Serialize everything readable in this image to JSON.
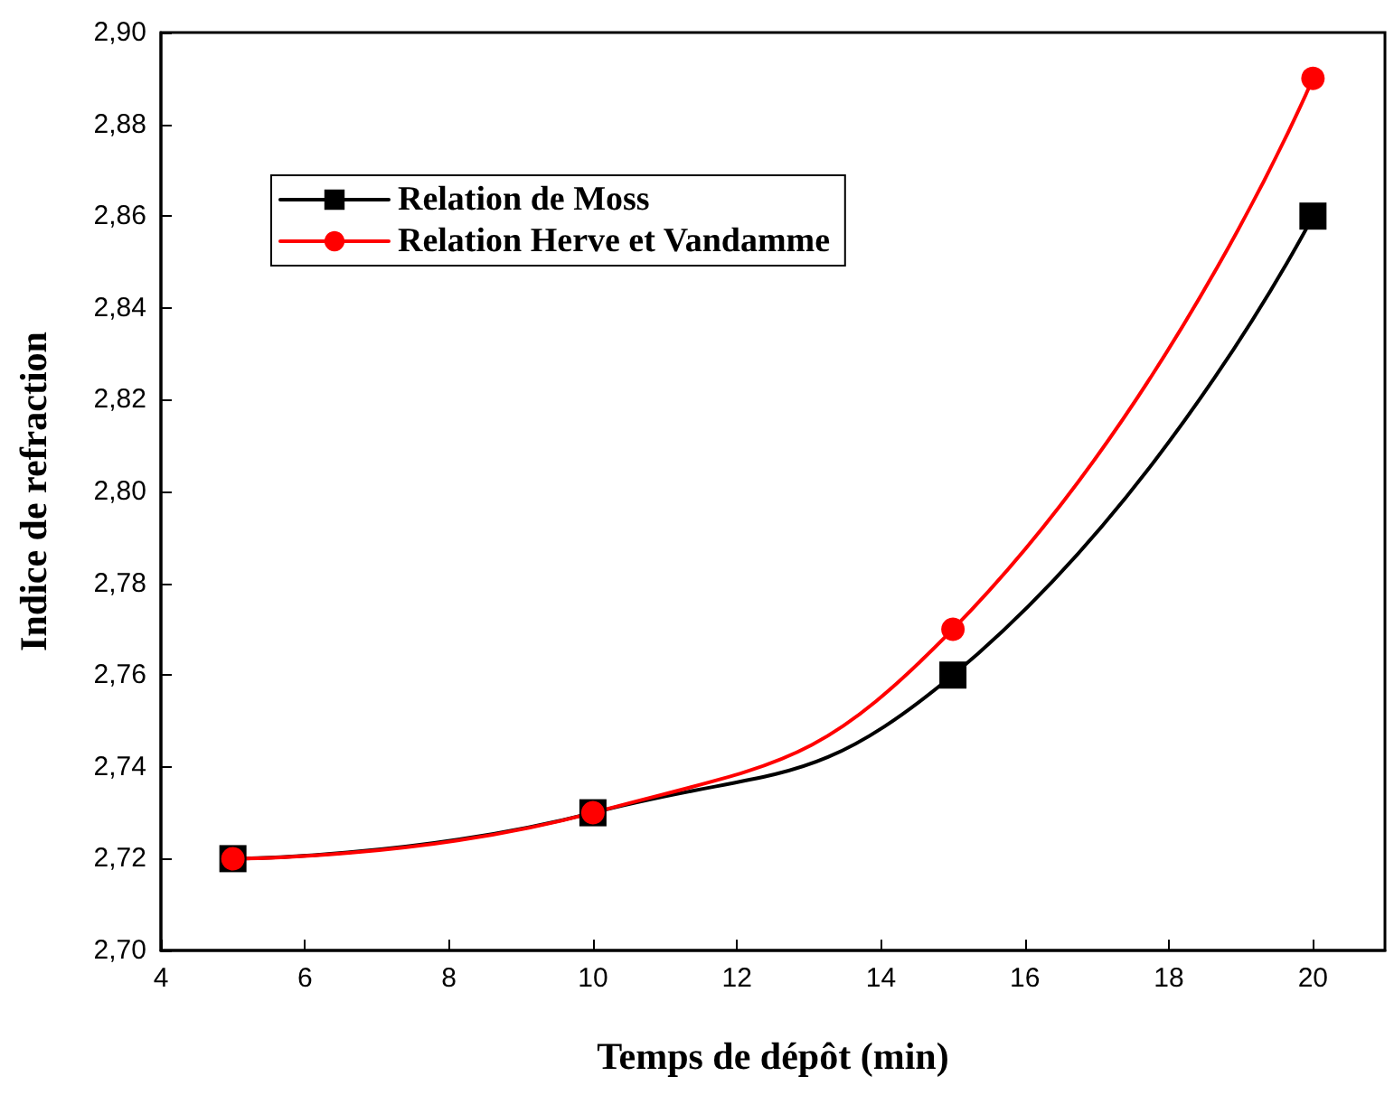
{
  "chart_data": {
    "type": "line",
    "xlabel": "Temps de dépôt (min)",
    "ylabel": "Indice de refraction",
    "x": [
      5,
      10,
      15,
      20
    ],
    "series": [
      {
        "name": "Relation de Moss",
        "color": "#000000",
        "marker": "square",
        "values": [
          2.72,
          2.73,
          2.76,
          2.86
        ]
      },
      {
        "name": "Relation Herve et Vandamme",
        "color": "#ff0000",
        "marker": "circle",
        "values": [
          2.72,
          2.73,
          2.77,
          2.89
        ]
      }
    ],
    "xlim": [
      4,
      21
    ],
    "xticks": [
      4,
      6,
      8,
      10,
      12,
      14,
      16,
      18,
      20
    ],
    "ylim": [
      2.7,
      2.9
    ],
    "yticks": [
      {
        "value": 2.7,
        "label": "2,70"
      },
      {
        "value": 2.72,
        "label": "2,72"
      },
      {
        "value": 2.74,
        "label": "2,74"
      },
      {
        "value": 2.76,
        "label": "2,76"
      },
      {
        "value": 2.78,
        "label": "2,78"
      },
      {
        "value": 2.8,
        "label": "2,80"
      },
      {
        "value": 2.82,
        "label": "2,82"
      },
      {
        "value": 2.84,
        "label": "2,84"
      },
      {
        "value": 2.86,
        "label": "2,86"
      },
      {
        "value": 2.88,
        "label": "2,88"
      },
      {
        "value": 2.9,
        "label": "2,90"
      }
    ],
    "legend": "top left",
    "grid": false,
    "line_style": "solid"
  }
}
